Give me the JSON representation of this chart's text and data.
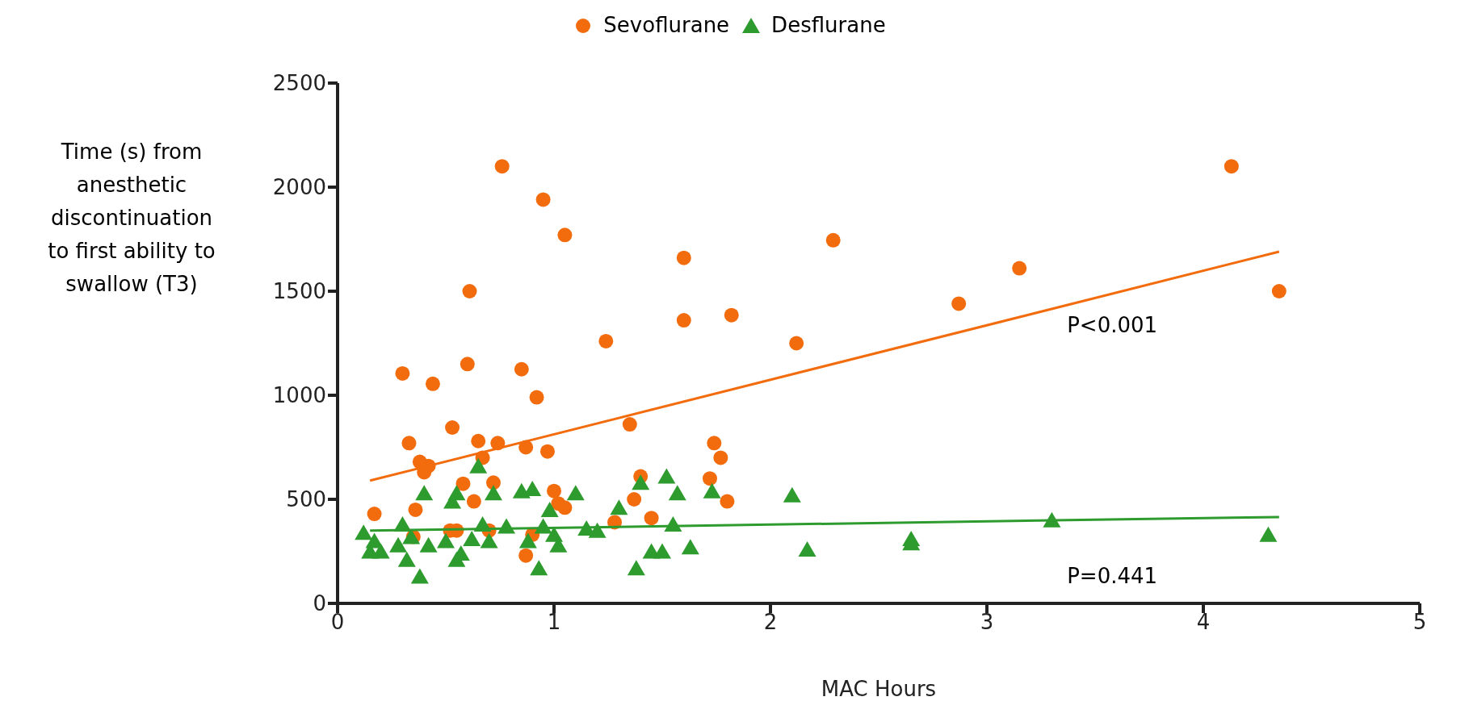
{
  "chart_data": {
    "type": "scatter",
    "xlabel": "MAC Hours",
    "ylabel": "Time (s) from anesthetic discontinuation to first ability to swallow (T3)",
    "xlim": [
      0,
      5
    ],
    "xticks": [
      0,
      1,
      2,
      3,
      4,
      5
    ],
    "ylim": [
      0,
      2500
    ],
    "yticks": [
      0,
      500,
      1000,
      1500,
      2000,
      2500
    ],
    "grid": false,
    "legend": "top",
    "series": [
      {
        "name": "Sevoflurane",
        "color": "#f26c0d",
        "marker": "circle",
        "x": [
          0.17,
          0.3,
          0.33,
          0.35,
          0.36,
          0.38,
          0.4,
          0.42,
          0.44,
          0.52,
          0.53,
          0.55,
          0.58,
          0.6,
          0.61,
          0.63,
          0.65,
          0.67,
          0.7,
          0.72,
          0.74,
          0.76,
          0.85,
          0.87,
          0.87,
          0.9,
          0.92,
          0.95,
          0.97,
          1.0,
          1.02,
          1.05,
          1.05,
          1.24,
          1.28,
          1.35,
          1.37,
          1.4,
          1.45,
          1.6,
          1.6,
          1.72,
          1.74,
          1.77,
          1.8,
          1.82,
          2.12,
          2.29,
          2.87,
          3.15,
          4.13,
          4.35
        ],
        "values": [
          430,
          1105,
          770,
          320,
          450,
          680,
          630,
          660,
          1055,
          350,
          845,
          350,
          575,
          1150,
          1500,
          490,
          780,
          700,
          350,
          580,
          770,
          2100,
          1125,
          750,
          230,
          330,
          990,
          1940,
          730,
          540,
          480,
          1770,
          460,
          1260,
          390,
          860,
          500,
          610,
          410,
          1660,
          1360,
          600,
          770,
          700,
          490,
          1385,
          1250,
          1745,
          1440,
          1610,
          2100,
          1500
        ]
      },
      {
        "name": "Desflurane",
        "color": "#2e9b2e",
        "marker": "triangle",
        "x": [
          0.12,
          0.15,
          0.17,
          0.2,
          0.28,
          0.3,
          0.32,
          0.34,
          0.38,
          0.4,
          0.42,
          0.5,
          0.53,
          0.55,
          0.55,
          0.57,
          0.62,
          0.65,
          0.67,
          0.7,
          0.72,
          0.78,
          0.85,
          0.88,
          0.9,
          0.93,
          0.95,
          0.98,
          1.0,
          1.02,
          1.1,
          1.15,
          1.2,
          1.3,
          1.38,
          1.4,
          1.45,
          1.5,
          1.52,
          1.55,
          1.57,
          1.63,
          1.73,
          2.1,
          2.17,
          2.65,
          2.65,
          3.3,
          4.3
        ],
        "values": [
          340,
          250,
          300,
          250,
          280,
          380,
          210,
          320,
          130,
          530,
          280,
          300,
          490,
          530,
          210,
          240,
          310,
          660,
          380,
          300,
          530,
          370,
          540,
          300,
          550,
          170,
          370,
          450,
          330,
          280,
          530,
          360,
          350,
          460,
          170,
          580,
          250,
          250,
          610,
          380,
          530,
          270,
          540,
          520,
          260,
          290,
          310,
          400,
          330
        ]
      },
      {
        "type": "line",
        "color": "#f26c0d",
        "marker": "none",
        "x": [
          0.15,
          4.35
        ],
        "values": [
          590,
          1690
        ]
      },
      {
        "type": "line",
        "color": "#2e9b2e",
        "marker": "none",
        "x": [
          0.15,
          4.35
        ],
        "values": [
          350,
          415
        ]
      }
    ],
    "annotations": [
      "P<0.001",
      "P=0.441"
    ]
  }
}
